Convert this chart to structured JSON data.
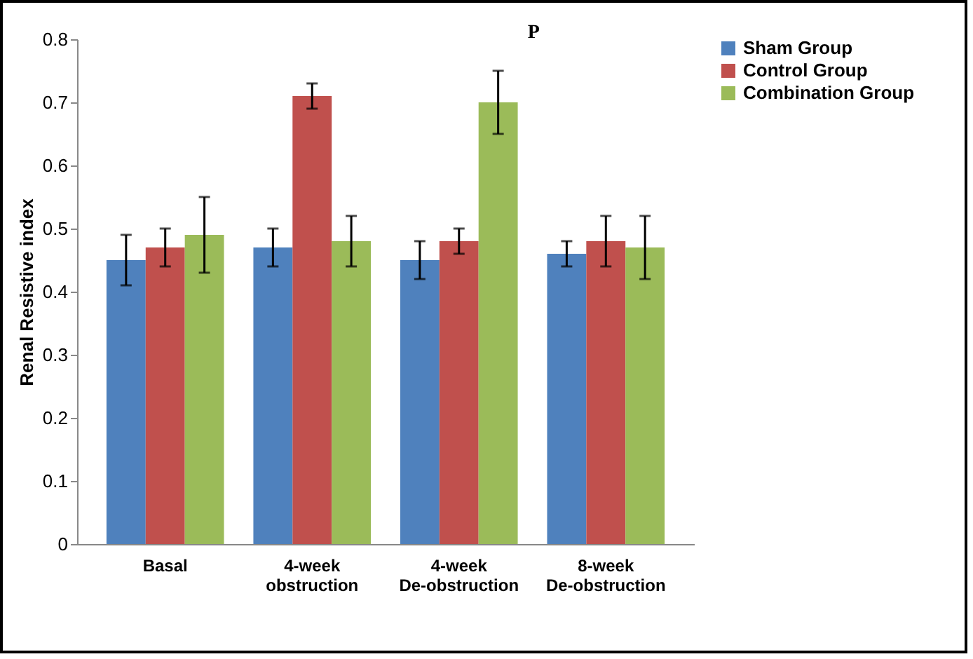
{
  "chart_data": {
    "type": "bar",
    "ylabel": "Renal Resistive index",
    "categories": [
      "Basal",
      "4-week obstruction",
      "4-week De-obstruction",
      "8-week De-obstruction"
    ],
    "series": [
      {
        "name": "Sham Group",
        "color": "#4f81bd",
        "values": [
          0.45,
          0.47,
          0.45,
          0.46
        ],
        "errors": [
          0.04,
          0.03,
          0.03,
          0.02
        ]
      },
      {
        "name": "Control Group",
        "color": "#c0504d",
        "values": [
          0.47,
          0.71,
          0.48,
          0.48
        ],
        "errors": [
          0.03,
          0.02,
          0.02,
          0.04
        ]
      },
      {
        "name": "Combination Group",
        "color": "#9bbb59",
        "values": [
          0.49,
          0.48,
          0.7,
          0.47
        ],
        "errors": [
          0.06,
          0.04,
          0.05,
          0.05
        ]
      }
    ],
    "ylim": [
      0,
      0.8
    ],
    "yticks": [
      0,
      0.1,
      0.2,
      0.3,
      0.4,
      0.5,
      0.6,
      0.7,
      0.8
    ],
    "grid": false,
    "legend": "top right",
    "annotations": [
      "P"
    ]
  }
}
